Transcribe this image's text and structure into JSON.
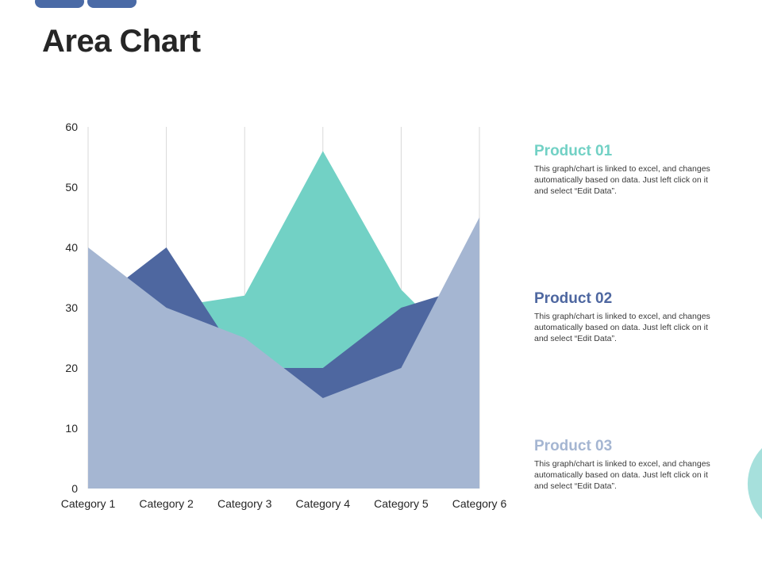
{
  "slide": {
    "title": "Area Chart"
  },
  "colors": {
    "accent_bar": "#4a6aa6",
    "product_01": "#72d1c5",
    "product_02": "#4e67a0",
    "product_03": "#a5b6d2",
    "decoration": "#a6e0dc"
  },
  "legend": [
    {
      "name": "Product 01",
      "color": "#72d1c5",
      "desc": "This graph/chart is linked to excel, and changes automatically based on data. Just left click on it and select “Edit Data”."
    },
    {
      "name": "Product 02",
      "color": "#4e67a0",
      "desc": "This graph/chart is linked to excel, and changes automatically based on data. Just left click on it and select “Edit Data”."
    },
    {
      "name": "Product 03",
      "color": "#a5b6d2",
      "desc": "This graph/chart is linked to excel, and changes automatically based on data. Just left click on it and select “Edit Data”."
    }
  ],
  "chart_data": {
    "type": "area",
    "title": "",
    "xlabel": "",
    "ylabel": "",
    "categories": [
      "Category 1",
      "Category 2",
      "Category 3",
      "Category 4",
      "Category 5",
      "Category 6"
    ],
    "ylim": [
      0,
      60
    ],
    "yticks": [
      0,
      10,
      20,
      30,
      40,
      50,
      60
    ],
    "grid": "vertical",
    "overlapping": true,
    "series": [
      {
        "name": "Product 01",
        "color": "#72d1c5",
        "values": [
          25,
          30,
          32,
          56,
          33,
          20
        ]
      },
      {
        "name": "Product 02",
        "color": "#4e67a0",
        "values": [
          30,
          40,
          20,
          20,
          30,
          34
        ]
      },
      {
        "name": "Product 03",
        "color": "#a5b6d2",
        "values": [
          40,
          30,
          25,
          15,
          20,
          45
        ]
      }
    ]
  }
}
